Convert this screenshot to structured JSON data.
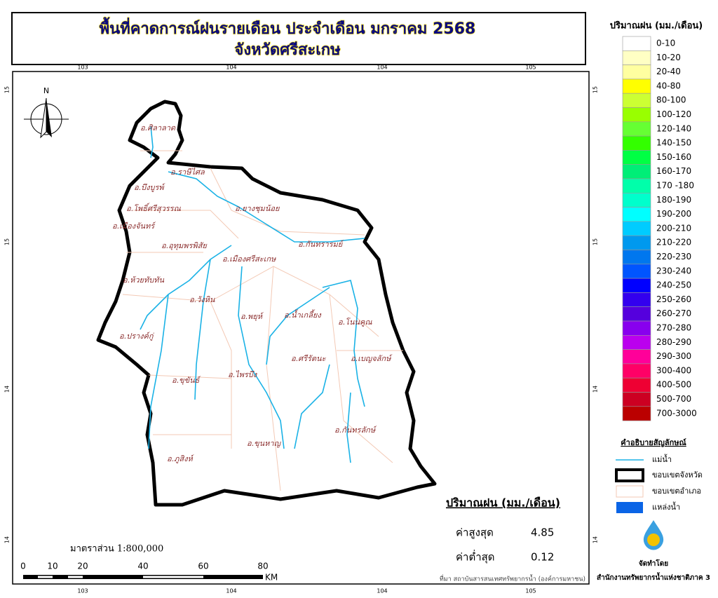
{
  "title": {
    "line1": "พื้นที่คาดการณ์ฝนรายเดือน ประจำเดือน มกราคม 2568",
    "line2": "จังหวัดศรีสะเกษ"
  },
  "map": {
    "north": "N",
    "top_ticks": [
      "103",
      "104",
      "104",
      "105"
    ],
    "bottom_ticks": [
      "103",
      "104",
      "104",
      "105"
    ],
    "left_ticks": [
      "15",
      "15",
      "14",
      "14"
    ],
    "right_ticks": [
      "15",
      "15",
      "14",
      "14"
    ],
    "districts": [
      "อ.ศิลาลาด",
      "อ.ราษีไศล",
      "อ.บึงบูรพ์",
      "อ.โพธิ์ศรีสุวรรณ",
      "อ.ยางชุมน้อย",
      "อ.เมืองจันทร์",
      "อ.กันทรารมย์",
      "อ.อุทุมพรพิสัย",
      "อ.เมืองศรีสะเกษ",
      "อ.ห้วยทับทัน",
      "อ.วังหิน",
      "อ.พยุห์",
      "อ.น้ำเกลี้ยง",
      "อ.โนนคูณ",
      "อ.ปรางค์กู่",
      "อ.ศรีรัตนะ",
      "อ.เบญจลักษ์",
      "อ.ขุขันธ์",
      "อ.ไพรบึง",
      "อ.กันทรลักษ์",
      "อ.ขุนหาญ",
      "อ.ภูสิงห์"
    ]
  },
  "rain_legend": {
    "title": "ปริมาณฝน (มม./เดือน)",
    "classes": [
      {
        "label": "0-10",
        "color": "#ffffff"
      },
      {
        "label": "10-20",
        "color": "#ffffc4"
      },
      {
        "label": "20-40",
        "color": "#ffffa0"
      },
      {
        "label": "40-80",
        "color": "#ffff00"
      },
      {
        "label": "80-100",
        "color": "#ccff33"
      },
      {
        "label": "100-120",
        "color": "#99ff00"
      },
      {
        "label": "120-140",
        "color": "#66ff33"
      },
      {
        "label": "140-150",
        "color": "#33ff00"
      },
      {
        "label": "150-160",
        "color": "#00ff44"
      },
      {
        "label": "160-170",
        "color": "#00ee77"
      },
      {
        "label": "170 -180",
        "color": "#00ffaa"
      },
      {
        "label": "180-190",
        "color": "#00ffcc"
      },
      {
        "label": "190-200",
        "color": "#00ffff"
      },
      {
        "label": "200-210",
        "color": "#00ccff"
      },
      {
        "label": "210-220",
        "color": "#0099ee"
      },
      {
        "label": "220-230",
        "color": "#0077ee"
      },
      {
        "label": "230-240",
        "color": "#0055ff"
      },
      {
        "label": "240-250",
        "color": "#0000ff"
      },
      {
        "label": "250-260",
        "color": "#3300ee"
      },
      {
        "label": "260-270",
        "color": "#5500dd"
      },
      {
        "label": "270-280",
        "color": "#8800ee"
      },
      {
        "label": "280-290",
        "color": "#bb00ee"
      },
      {
        "label": "290-300",
        "color": "#ff0099"
      },
      {
        "label": "300-400",
        "color": "#ff0066"
      },
      {
        "label": "400-500",
        "color": "#ee0033"
      },
      {
        "label": "500-700",
        "color": "#cc0022"
      },
      {
        "label": "700-3000",
        "color": "#bb0000"
      }
    ]
  },
  "symbol_legend": {
    "title": "คำอธิบายสัญลักษณ์",
    "items": [
      "แม่น้ำ",
      "ขอบเขตจังหวัด",
      "ขอบเขตอำเภอ",
      "แหล่งน้ำ"
    ]
  },
  "stats": {
    "title": "ปริมาณฝน (มม./เดือน)",
    "max_label": "ค่าสูงสุด",
    "max": 4.85,
    "min_label": "ค่าต่ำสุด",
    "min": 0.12
  },
  "scale": {
    "text": "มาตราส่วน 1:800,000",
    "labels": [
      "0",
      "10",
      "20",
      "40",
      "60",
      "80"
    ],
    "unit": "KM"
  },
  "source": "ที่มา  สถาบันสารสนเทศทรัพยากรน้ำ (องค์การมหาชน)",
  "credit": {
    "label": "จัดทำโดย",
    "agency": "สำนักงานทรัพยากรน้ำแห่งชาติภาค 3"
  }
}
